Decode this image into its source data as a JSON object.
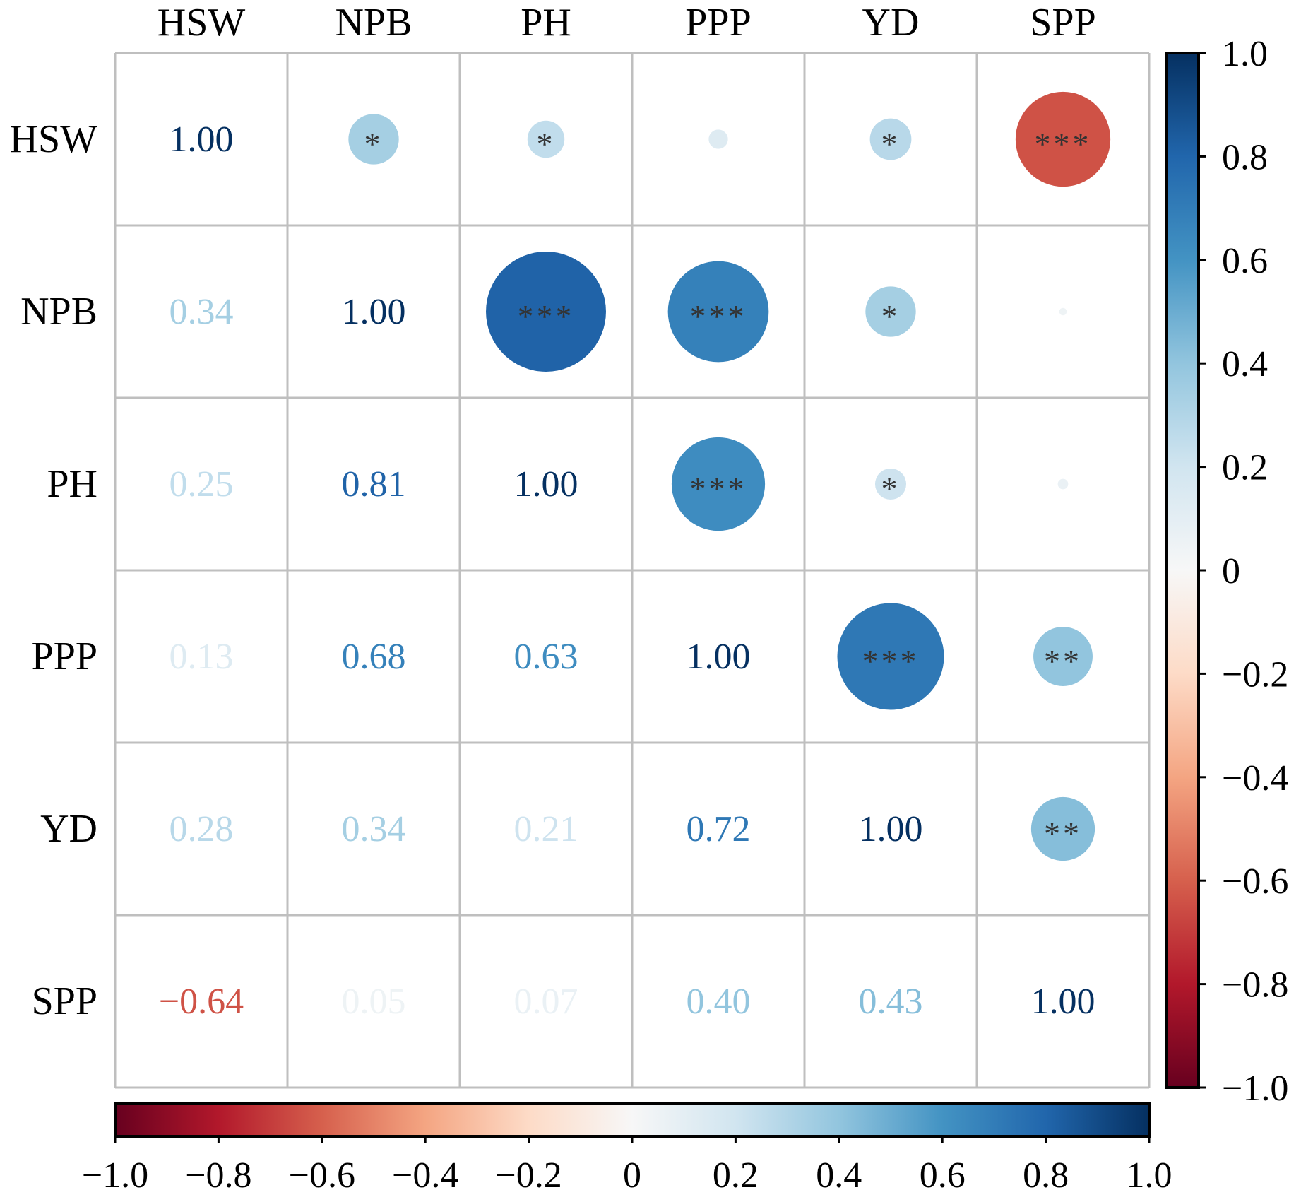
{
  "chart_data": {
    "type": "heatmap",
    "subtype": "correlation-matrix",
    "variables": [
      "HSW",
      "NPB",
      "PH",
      "PPP",
      "YD",
      "SPP"
    ],
    "matrix": [
      [
        1.0,
        0.34,
        0.25,
        0.13,
        0.28,
        -0.64
      ],
      [
        0.34,
        1.0,
        0.81,
        0.68,
        0.34,
        0.05
      ],
      [
        0.25,
        0.81,
        1.0,
        0.63,
        0.21,
        0.07
      ],
      [
        0.13,
        0.68,
        0.63,
        1.0,
        0.72,
        0.4
      ],
      [
        0.28,
        0.34,
        0.21,
        0.72,
        1.0,
        0.43
      ],
      [
        -0.64,
        0.05,
        0.07,
        0.4,
        0.43,
        1.0
      ]
    ],
    "significance_upper": [
      [
        "",
        "*",
        "*",
        "",
        "*",
        "***"
      ],
      [
        "",
        "",
        "***",
        "***",
        "*",
        ""
      ],
      [
        "",
        "",
        "",
        "***",
        "*",
        ""
      ],
      [
        "",
        "",
        "",
        "",
        "***",
        "**"
      ],
      [
        "",
        "",
        "",
        "",
        "",
        "**"
      ],
      [
        "",
        "",
        "",
        "",
        "",
        ""
      ]
    ],
    "lower_triangle": "numeric values",
    "upper_triangle": "circles sized by |r| with significance stars",
    "diagonal_labels": [
      "1.00",
      "1.00",
      "1.00",
      "1.00",
      "1.00",
      "1.00"
    ],
    "colormap": "RdBu",
    "colormap_stops": [
      "#67001f",
      "#b2182b",
      "#d6604d",
      "#f4a582",
      "#fddbc7",
      "#f7f7f7",
      "#d1e5f0",
      "#92c5de",
      "#4393c3",
      "#2166ac",
      "#053061"
    ],
    "vmin": -1.0,
    "vmax": 1.0,
    "colorbar_right_ticks": [
      "1.0",
      "0.8",
      "0.6",
      "0.4",
      "0.2",
      "0",
      "−0.2",
      "−0.4",
      "−0.6",
      "−0.8",
      "−1.0"
    ],
    "colorbar_bottom_ticks": [
      "−1.0",
      "−0.8",
      "−0.6",
      "−0.4",
      "−0.2",
      "0",
      "0.2",
      "0.4",
      "0.6",
      "0.8",
      "1.0"
    ],
    "colorbar_tick_values": [
      -1.0,
      -0.8,
      -0.6,
      -0.4,
      -0.2,
      0,
      0.2,
      0.4,
      0.6,
      0.8,
      1.0
    ],
    "grid_color": "#bfbfbf",
    "star_color": "#333333"
  }
}
